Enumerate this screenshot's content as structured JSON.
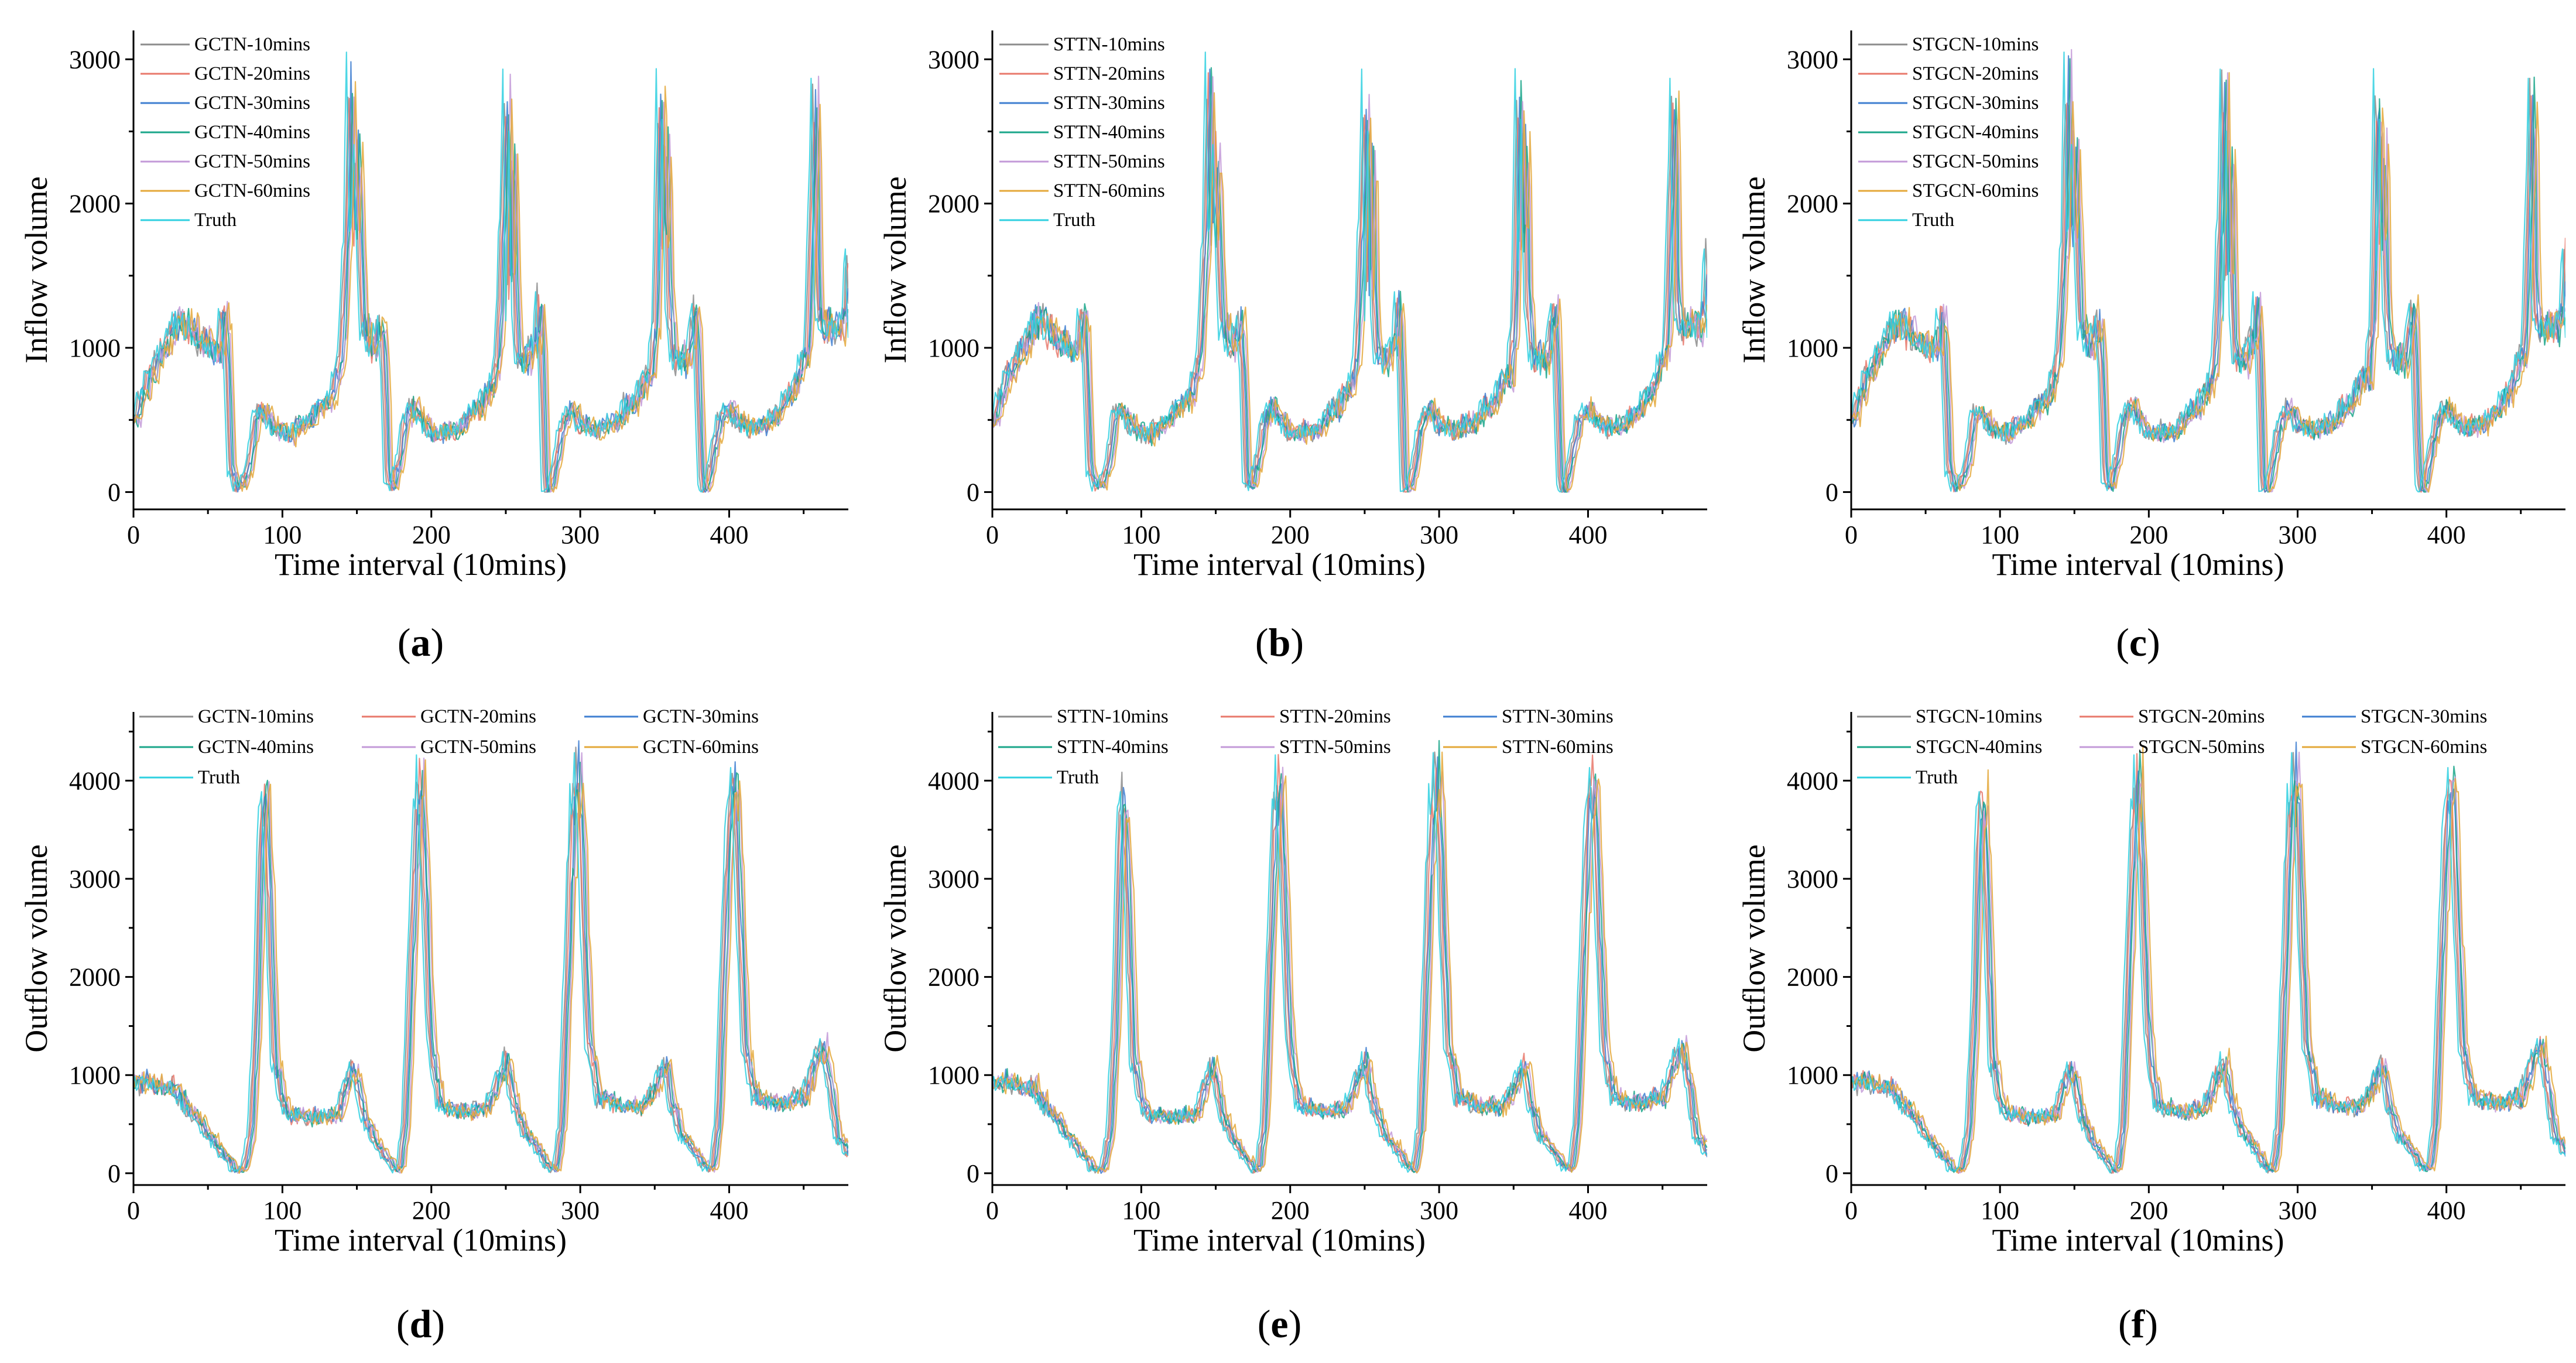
{
  "colors": {
    "m10": "#8c8c8c",
    "m20": "#e8786b",
    "m30": "#3f7fd1",
    "m40": "#1aa68a",
    "m50": "#c39ad8",
    "m60": "#e4a83a",
    "truth": "#2fd0e0"
  },
  "chart_data": [
    {
      "id": "a",
      "caption": "a",
      "type": "line",
      "flow": "inflow",
      "xlabel": "Time interval (10mins)",
      "ylabel": "Inflow volume",
      "xlim": [
        0,
        480
      ],
      "ylim": [
        -120,
        3200
      ],
      "xticks": [
        "0",
        "100",
        "200",
        "300",
        "400"
      ],
      "xtick_values": [
        0,
        100,
        200,
        300,
        400
      ],
      "yticks": [
        "0",
        "1000",
        "2000",
        "3000"
      ],
      "ytick_values": [
        0,
        1000,
        2000,
        3000
      ],
      "legend_columns": 1,
      "legend_position": "top-left",
      "series": [
        {
          "name": "GCTN-10mins",
          "color_key": "m10",
          "lag": 1
        },
        {
          "name": "GCTN-20mins",
          "color_key": "m20",
          "lag": 2
        },
        {
          "name": "GCTN-30mins",
          "color_key": "m30",
          "lag": 3
        },
        {
          "name": "GCTN-40mins",
          "color_key": "m40",
          "lag": 4
        },
        {
          "name": "GCTN-50mins",
          "color_key": "m50",
          "lag": 5
        },
        {
          "name": "GCTN-60mins",
          "color_key": "m60",
          "lag": 6
        },
        {
          "name": "Truth",
          "color_key": "truth",
          "lag": 0
        }
      ]
    },
    {
      "id": "b",
      "caption": "b",
      "type": "line",
      "flow": "inflow",
      "xlabel": "Time interval (10mins)",
      "ylabel": "Inflow volume",
      "xlim": [
        0,
        480
      ],
      "ylim": [
        -120,
        3200
      ],
      "xticks": [
        "0",
        "100",
        "200",
        "300",
        "400"
      ],
      "xtick_values": [
        0,
        100,
        200,
        300,
        400
      ],
      "yticks": [
        "0",
        "1000",
        "2000",
        "3000"
      ],
      "ytick_values": [
        0,
        1000,
        2000,
        3000
      ],
      "legend_columns": 1,
      "legend_position": "top-left",
      "series": [
        {
          "name": "STTN-10mins",
          "color_key": "m10",
          "lag": 1
        },
        {
          "name": "STTN-20mins",
          "color_key": "m20",
          "lag": 2
        },
        {
          "name": "STTN-30mins",
          "color_key": "m30",
          "lag": 3
        },
        {
          "name": "STTN-40mins",
          "color_key": "m40",
          "lag": 4
        },
        {
          "name": "STTN-50mins",
          "color_key": "m50",
          "lag": 5
        },
        {
          "name": "STTN-60mins",
          "color_key": "m60",
          "lag": 6
        },
        {
          "name": "Truth",
          "color_key": "truth",
          "lag": 0
        }
      ]
    },
    {
      "id": "c",
      "caption": "c",
      "type": "line",
      "flow": "inflow",
      "xlabel": "Time interval (10mins)",
      "ylabel": "Inflow volume",
      "xlim": [
        0,
        480
      ],
      "ylim": [
        -120,
        3200
      ],
      "xticks": [
        "0",
        "100",
        "200",
        "300",
        "400"
      ],
      "xtick_values": [
        0,
        100,
        200,
        300,
        400
      ],
      "yticks": [
        "0",
        "1000",
        "2000",
        "3000"
      ],
      "ytick_values": [
        0,
        1000,
        2000,
        3000
      ],
      "legend_columns": 1,
      "legend_position": "top-left",
      "series": [
        {
          "name": "STGCN-10mins",
          "color_key": "m10",
          "lag": 1
        },
        {
          "name": "STGCN-20mins",
          "color_key": "m20",
          "lag": 2
        },
        {
          "name": "STGCN-30mins",
          "color_key": "m30",
          "lag": 3
        },
        {
          "name": "STGCN-40mins",
          "color_key": "m40",
          "lag": 4
        },
        {
          "name": "STGCN-50mins",
          "color_key": "m50",
          "lag": 5
        },
        {
          "name": "STGCN-60mins",
          "color_key": "m60",
          "lag": 6
        },
        {
          "name": "Truth",
          "color_key": "truth",
          "lag": 0
        }
      ]
    },
    {
      "id": "d",
      "caption": "d",
      "type": "line",
      "flow": "outflow",
      "xlabel": "Time interval (10mins)",
      "ylabel": "Outflow volume",
      "xlim": [
        0,
        480
      ],
      "ylim": [
        -120,
        4700
      ],
      "xticks": [
        "0",
        "100",
        "200",
        "300",
        "400"
      ],
      "xtick_values": [
        0,
        100,
        200,
        300,
        400
      ],
      "yticks": [
        "0",
        "1000",
        "2000",
        "3000",
        "4000"
      ],
      "ytick_values": [
        0,
        1000,
        2000,
        3000,
        4000
      ],
      "legend_columns": 3,
      "legend_position": "top",
      "series": [
        {
          "name": "GCTN-10mins",
          "color_key": "m10",
          "lag": 1
        },
        {
          "name": "GCTN-20mins",
          "color_key": "m20",
          "lag": 2
        },
        {
          "name": "GCTN-30mins",
          "color_key": "m30",
          "lag": 3
        },
        {
          "name": "GCTN-40mins",
          "color_key": "m40",
          "lag": 4
        },
        {
          "name": "GCTN-50mins",
          "color_key": "m50",
          "lag": 5
        },
        {
          "name": "GCTN-60mins",
          "color_key": "m60",
          "lag": 6
        },
        {
          "name": "Truth",
          "color_key": "truth",
          "lag": 0
        }
      ]
    },
    {
      "id": "e",
      "caption": "e",
      "type": "line",
      "flow": "outflow",
      "xlabel": "Time interval (10mins)",
      "ylabel": "Outflow volume",
      "xlim": [
        0,
        480
      ],
      "ylim": [
        -120,
        4700
      ],
      "xticks": [
        "0",
        "100",
        "200",
        "300",
        "400"
      ],
      "xtick_values": [
        0,
        100,
        200,
        300,
        400
      ],
      "yticks": [
        "0",
        "1000",
        "2000",
        "3000",
        "4000"
      ],
      "ytick_values": [
        0,
        1000,
        2000,
        3000,
        4000
      ],
      "legend_columns": 3,
      "legend_position": "top",
      "series": [
        {
          "name": "STTN-10mins",
          "color_key": "m10",
          "lag": 1
        },
        {
          "name": "STTN-20mins",
          "color_key": "m20",
          "lag": 2
        },
        {
          "name": "STTN-30mins",
          "color_key": "m30",
          "lag": 3
        },
        {
          "name": "STTN-40mins",
          "color_key": "m40",
          "lag": 4
        },
        {
          "name": "STTN-50mins",
          "color_key": "m50",
          "lag": 5
        },
        {
          "name": "STTN-60mins",
          "color_key": "m60",
          "lag": 6
        },
        {
          "name": "Truth",
          "color_key": "truth",
          "lag": 0
        }
      ]
    },
    {
      "id": "f",
      "caption": "f",
      "type": "line",
      "flow": "outflow",
      "xlabel": "Time interval (10mins)",
      "ylabel": "Outflow volume",
      "xlim": [
        0,
        480
      ],
      "ylim": [
        -120,
        4700
      ],
      "xticks": [
        "0",
        "100",
        "200",
        "300",
        "400"
      ],
      "xtick_values": [
        0,
        100,
        200,
        300,
        400
      ],
      "yticks": [
        "0",
        "1000",
        "2000",
        "3000",
        "4000"
      ],
      "ytick_values": [
        0,
        1000,
        2000,
        3000,
        4000
      ],
      "legend_columns": 3,
      "legend_position": "top",
      "series": [
        {
          "name": "STGCN-10mins",
          "color_key": "m10",
          "lag": 1
        },
        {
          "name": "STGCN-20mins",
          "color_key": "m20",
          "lag": 2
        },
        {
          "name": "STGCN-30mins",
          "color_key": "m30",
          "lag": 3
        },
        {
          "name": "STGCN-40mins",
          "color_key": "m40",
          "lag": 4
        },
        {
          "name": "STGCN-50mins",
          "color_key": "m50",
          "lag": 5
        },
        {
          "name": "STGCN-60mins",
          "color_key": "m60",
          "lag": 6
        },
        {
          "name": "Truth",
          "color_key": "truth",
          "lag": 0
        }
      ]
    }
  ],
  "truth_keypoints": {
    "inflow": [
      [
        0,
        560
      ],
      [
        8,
        800
      ],
      [
        15,
        950
      ],
      [
        22,
        1120
      ],
      [
        30,
        1180
      ],
      [
        40,
        1100
      ],
      [
        50,
        1020
      ],
      [
        55,
        980
      ],
      [
        58,
        1280
      ],
      [
        60,
        1050
      ],
      [
        63,
        150
      ],
      [
        66,
        30
      ],
      [
        70,
        40
      ],
      [
        75,
        200
      ],
      [
        80,
        520
      ],
      [
        84,
        600
      ],
      [
        88,
        520
      ],
      [
        95,
        400
      ],
      [
        110,
        430
      ],
      [
        125,
        580
      ],
      [
        135,
        800
      ],
      [
        138,
        1200
      ],
      [
        141,
        1800
      ],
      [
        143,
        2900
      ],
      [
        145,
        1700
      ],
      [
        148,
        2400
      ],
      [
        150,
        1500
      ],
      [
        152,
        1150
      ],
      [
        158,
        1000
      ],
      [
        162,
        1150
      ],
      [
        164,
        1300
      ],
      [
        166,
        800
      ],
      [
        168,
        30
      ],
      [
        172,
        40
      ],
      [
        180,
        480
      ],
      [
        185,
        600
      ],
      [
        190,
        500
      ],
      [
        200,
        400
      ],
      [
        215,
        450
      ],
      [
        230,
        600
      ],
      [
        240,
        800
      ],
      [
        243,
        1100
      ],
      [
        246,
        2000
      ],
      [
        248,
        2900
      ],
      [
        250,
        1200
      ],
      [
        252,
        2600
      ],
      [
        254,
        1300
      ],
      [
        256,
        950
      ],
      [
        262,
        900
      ],
      [
        268,
        1050
      ],
      [
        270,
        1300
      ],
      [
        272,
        800
      ],
      [
        274,
        30
      ],
      [
        278,
        40
      ],
      [
        285,
        480
      ],
      [
        290,
        600
      ],
      [
        295,
        500
      ],
      [
        305,
        420
      ],
      [
        320,
        500
      ],
      [
        335,
        650
      ],
      [
        345,
        820
      ],
      [
        348,
        1200
      ],
      [
        351,
        2900
      ],
      [
        353,
        1500
      ],
      [
        355,
        2500
      ],
      [
        357,
        1200
      ],
      [
        360,
        950
      ],
      [
        368,
        880
      ],
      [
        373,
        1100
      ],
      [
        375,
        1400
      ],
      [
        377,
        700
      ],
      [
        379,
        30
      ],
      [
        383,
        40
      ],
      [
        390,
        480
      ],
      [
        395,
        580
      ],
      [
        400,
        500
      ],
      [
        412,
        420
      ],
      [
        425,
        500
      ],
      [
        440,
        700
      ],
      [
        450,
        1000
      ],
      [
        452,
        1600
      ],
      [
        455,
        2850
      ],
      [
        457,
        1300
      ],
      [
        460,
        1200
      ],
      [
        470,
        1100
      ],
      [
        475,
        1200
      ],
      [
        478,
        1700
      ],
      [
        480,
        1100
      ]
    ],
    "outflow": [
      [
        0,
        900
      ],
      [
        8,
        960
      ],
      [
        15,
        920
      ],
      [
        25,
        860
      ],
      [
        35,
        650
      ],
      [
        45,
        450
      ],
      [
        55,
        250
      ],
      [
        62,
        100
      ],
      [
        68,
        10
      ],
      [
        72,
        60
      ],
      [
        76,
        400
      ],
      [
        80,
        1500
      ],
      [
        83,
        3500
      ],
      [
        85,
        4000
      ],
      [
        88,
        3000
      ],
      [
        92,
        1200
      ],
      [
        98,
        700
      ],
      [
        105,
        600
      ],
      [
        120,
        560
      ],
      [
        135,
        620
      ],
      [
        140,
        900
      ],
      [
        145,
        1080
      ],
      [
        150,
        700
      ],
      [
        158,
        350
      ],
      [
        165,
        200
      ],
      [
        172,
        50
      ],
      [
        176,
        30
      ],
      [
        180,
        500
      ],
      [
        184,
        2200
      ],
      [
        188,
        3800
      ],
      [
        190,
        4050
      ],
      [
        193,
        3000
      ],
      [
        197,
        1300
      ],
      [
        203,
        700
      ],
      [
        215,
        620
      ],
      [
        235,
        680
      ],
      [
        243,
        950
      ],
      [
        248,
        1150
      ],
      [
        252,
        750
      ],
      [
        260,
        400
      ],
      [
        270,
        220
      ],
      [
        277,
        40
      ],
      [
        281,
        30
      ],
      [
        285,
        500
      ],
      [
        289,
        2200
      ],
      [
        293,
        3800
      ],
      [
        296,
        4050
      ],
      [
        299,
        3000
      ],
      [
        303,
        1300
      ],
      [
        310,
        750
      ],
      [
        325,
        680
      ],
      [
        342,
        700
      ],
      [
        350,
        1000
      ],
      [
        355,
        1150
      ],
      [
        358,
        750
      ],
      [
        365,
        400
      ],
      [
        375,
        230
      ],
      [
        382,
        40
      ],
      [
        386,
        30
      ],
      [
        390,
        500
      ],
      [
        394,
        2200
      ],
      [
        398,
        3800
      ],
      [
        401,
        4000
      ],
      [
        404,
        2900
      ],
      [
        408,
        1300
      ],
      [
        415,
        750
      ],
      [
        430,
        700
      ],
      [
        448,
        780
      ],
      [
        455,
        1100
      ],
      [
        460,
        1380
      ],
      [
        464,
        1000
      ],
      [
        470,
        400
      ],
      [
        476,
        250
      ],
      [
        480,
        180
      ]
    ]
  }
}
